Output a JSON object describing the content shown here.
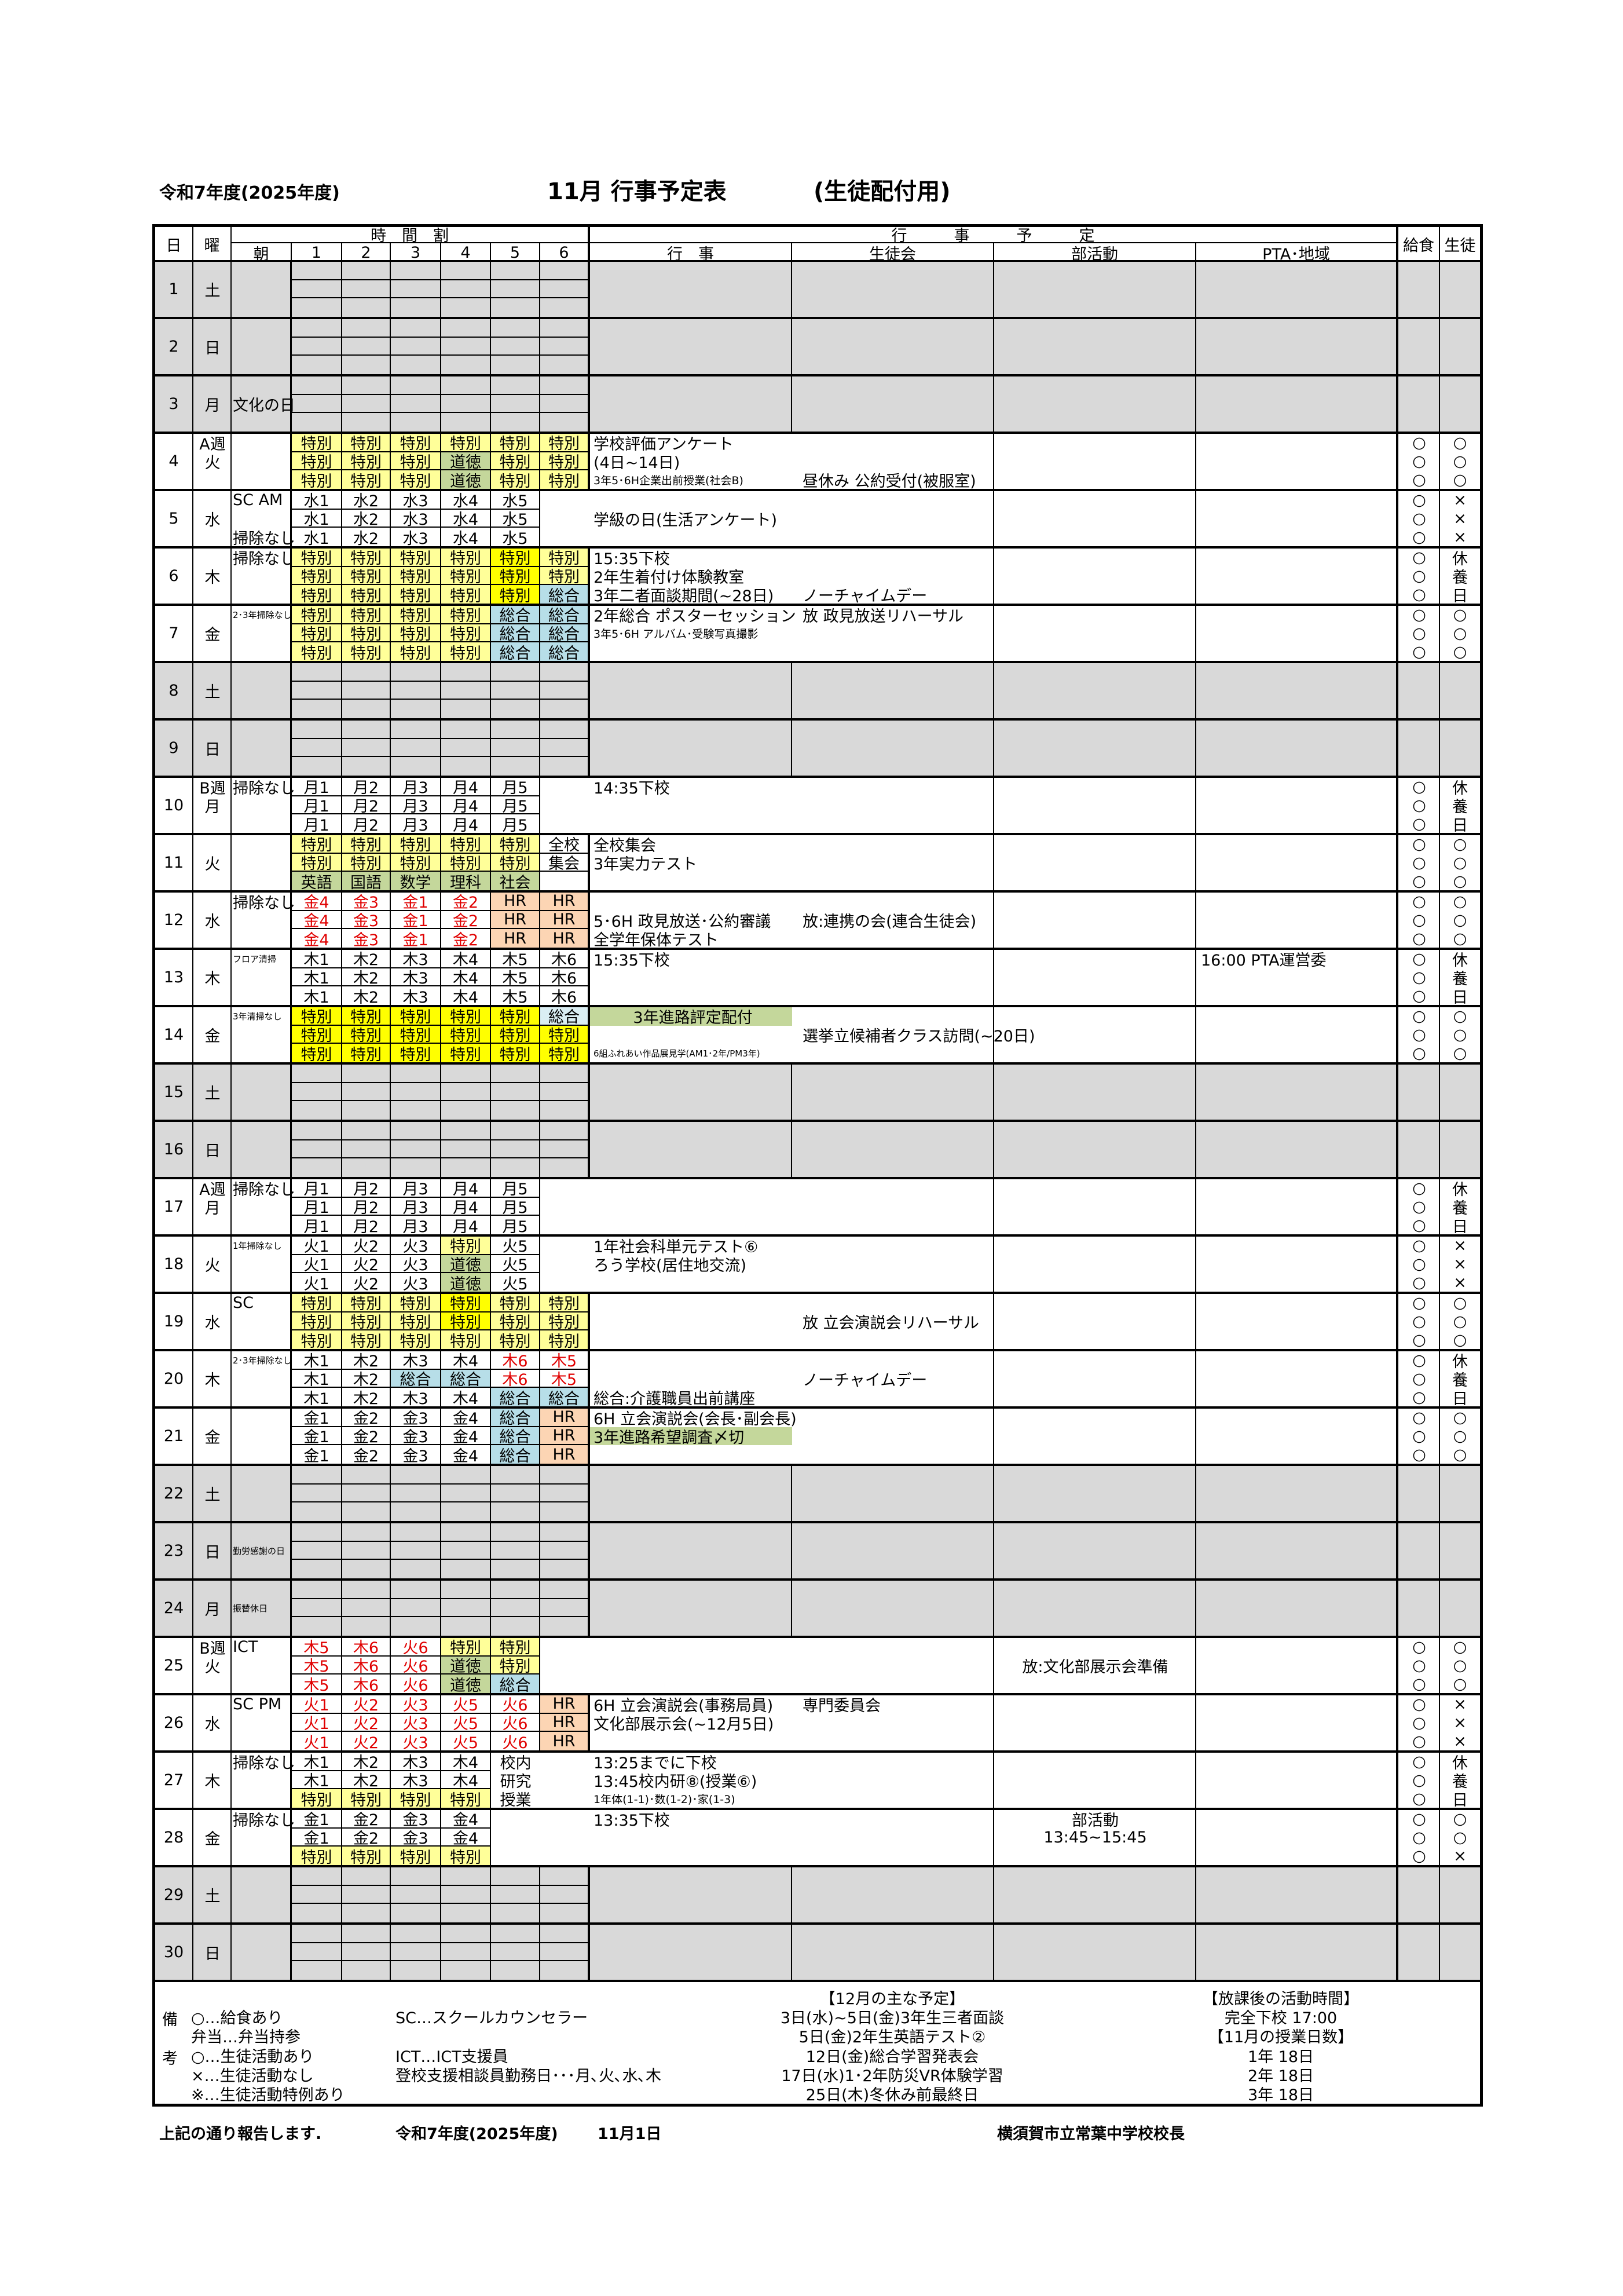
{
  "header": {
    "fiscal_year": "令和7年度(2025年度)",
    "title": "11月 行事予定表",
    "subtitle": "(生徒配付用)"
  },
  "columns": {
    "date": "日",
    "dow": "曜",
    "timetable": "時　間　割",
    "morning": "朝",
    "periods": [
      "1",
      "2",
      "3",
      "4",
      "5",
      "6"
    ],
    "schedule": "行　　　事　　　予　　　定",
    "events": "行　事",
    "council": "生徒会",
    "club": "部活動",
    "pta": "PTA･地域",
    "lunch": "給食",
    "students": "生徒"
  },
  "colors": {
    "y": "#ffff99",
    "Y": "#ffff00",
    "g": "#c4d79b",
    "b": "#b7dee8",
    "B": "#daeef3",
    "o": "#fcd5b4",
    "holiday": "#d9d9d9",
    "red_text": "#e00000",
    "highlight": "#c4d79b"
  },
  "days": [
    {
      "date": "1",
      "dow": "土",
      "holiday": true
    },
    {
      "date": "2",
      "dow": "日",
      "holiday": true
    },
    {
      "date": "3",
      "dow": "月",
      "holiday": true,
      "am": [
        "",
        "文化の日",
        ""
      ]
    },
    {
      "date": "4",
      "dow": "火",
      "week": "A週",
      "tt": [
        [
          "y:特別",
          "y:特別",
          "y:特別",
          "y:特別",
          "y:特別",
          "y:特別"
        ],
        [
          "y:特別",
          "y:特別",
          "y:特別",
          "g:道徳",
          "y:特別",
          "y:特別"
        ],
        [
          "y:特別",
          "y:特別",
          "y:特別",
          "g:道徳",
          "y:特別",
          "y:特別"
        ]
      ],
      "ev": [
        {
          "text": "学校評価アンケート"
        },
        {
          "text": "(4日~14日)"
        },
        {
          "text": "3年5･6H企業出前授業(社会B)",
          "small": true,
          "council": "昼休み 公約受付(被服室)"
        }
      ],
      "lunch": [
        "○",
        "○",
        "○"
      ],
      "students": [
        "○",
        "○",
        "○"
      ]
    },
    {
      "date": "5",
      "dow": "水",
      "am": [
        "SC AM",
        "",
        "掃除なし"
      ],
      "tt": [
        [
          "w:水1",
          "w:水2",
          "w:水3",
          "w:水4",
          "w:水5",
          "n:"
        ],
        [
          "w:水1",
          "w:水2",
          "w:水3",
          "w:水4",
          "w:水5",
          "n:"
        ],
        [
          "w:水1",
          "w:水2",
          "w:水3",
          "w:水4",
          "w:水5",
          "n:"
        ]
      ],
      "ev": [
        {
          "text": ""
        },
        {
          "text": "学級の日(生活アンケート)"
        },
        {
          "text": ""
        }
      ],
      "lunch": [
        "○",
        "○",
        "○"
      ],
      "students": [
        "×",
        "×",
        "×"
      ]
    },
    {
      "date": "6",
      "dow": "木",
      "am": [
        "掃除なし",
        "",
        ""
      ],
      "tt": [
        [
          "y:特別",
          "y:特別",
          "y:特別",
          "y:特別",
          "Y:特別",
          "y:特別"
        ],
        [
          "y:特別",
          "y:特別",
          "y:特別",
          "y:特別",
          "Y:特別",
          "y:特別"
        ],
        [
          "y:特別",
          "y:特別",
          "y:特別",
          "y:特別",
          "Y:特別",
          "b:総合"
        ]
      ],
      "ev": [
        {
          "text": "15:35下校"
        },
        {
          "text": "2年生着付け体験教室"
        },
        {
          "text": "3年二者面談期間(~28日)",
          "council": "ノーチャイムデー"
        }
      ],
      "lunch": [
        "○",
        "○",
        "○"
      ],
      "students": [
        "休",
        "養",
        "日"
      ]
    },
    {
      "date": "7",
      "dow": "金",
      "am": [
        "2･3年掃除なし",
        "",
        ""
      ],
      "am_small": true,
      "tt": [
        [
          "y:特別",
          "y:特別",
          "y:特別",
          "y:特別",
          "b:総合",
          "b:総合"
        ],
        [
          "y:特別",
          "y:特別",
          "y:特別",
          "y:特別",
          "b:総合",
          "b:総合"
        ],
        [
          "y:特別",
          "y:特別",
          "y:特別",
          "y:特別",
          "b:総合",
          "b:総合"
        ]
      ],
      "ev": [
        {
          "text": "2年総合 ポスターセッション",
          "council": "放 政見放送リハーサル"
        },
        {
          "text": "3年5･6H アルバム･受験写真撮影",
          "small": true
        },
        {
          "text": ""
        }
      ],
      "lunch": [
        "○",
        "○",
        "○"
      ],
      "students": [
        "○",
        "○",
        "○"
      ]
    },
    {
      "date": "8",
      "dow": "土",
      "holiday": true
    },
    {
      "date": "9",
      "dow": "日",
      "holiday": true
    },
    {
      "date": "10",
      "dow": "月",
      "week": "B週",
      "am": [
        "掃除なし",
        "",
        ""
      ],
      "tt": [
        [
          "w:月1",
          "w:月2",
          "w:月3",
          "w:月4",
          "w:月5",
          "n:"
        ],
        [
          "w:月1",
          "w:月2",
          "w:月3",
          "w:月4",
          "w:月5",
          "n:"
        ],
        [
          "w:月1",
          "w:月2",
          "w:月3",
          "w:月4",
          "w:月5",
          "n:"
        ]
      ],
      "ev": [
        {
          "text": "14:35下校"
        },
        {
          "text": ""
        },
        {
          "text": ""
        }
      ],
      "lunch": [
        "○",
        "○",
        "○"
      ],
      "students": [
        "休",
        "養",
        "日"
      ]
    },
    {
      "date": "11",
      "dow": "火",
      "tt": [
        [
          "y:特別",
          "y:特別",
          "y:特別",
          "y:特別",
          "y:特別",
          "w:全校"
        ],
        [
          "y:特別",
          "y:特別",
          "y:特別",
          "y:特別",
          "y:特別",
          "w:集会"
        ],
        [
          "g:英語",
          "g:国語",
          "g:数学",
          "g:理科",
          "g:社会",
          "w:"
        ]
      ],
      "ev": [
        {
          "text": "全校集会"
        },
        {
          "text": "3年実力テスト"
        },
        {
          "text": ""
        }
      ],
      "lunch": [
        "○",
        "○",
        "○"
      ],
      "students": [
        "○",
        "○",
        "○"
      ]
    },
    {
      "date": "12",
      "dow": "水",
      "am": [
        "掃除なし",
        "",
        ""
      ],
      "tt": [
        [
          "r:金4",
          "r:金3",
          "r:金1",
          "r:金2",
          "o:HR",
          "o:HR"
        ],
        [
          "r:金4",
          "r:金3",
          "r:金1",
          "r:金2",
          "o:HR",
          "o:HR"
        ],
        [
          "r:金4",
          "r:金3",
          "r:金1",
          "r:金2",
          "o:HR",
          "o:HR"
        ]
      ],
      "ev": [
        {
          "text": ""
        },
        {
          "text": "5･6H 政見放送･公約審議",
          "council": "放:連携の会(連合生徒会)"
        },
        {
          "text": "全学年保体テスト"
        }
      ],
      "lunch": [
        "○",
        "○",
        "○"
      ],
      "students": [
        "○",
        "○",
        "○"
      ]
    },
    {
      "date": "13",
      "dow": "木",
      "am": [
        "フロア清掃",
        "",
        ""
      ],
      "am_small": true,
      "tt": [
        [
          "w:木1",
          "w:木2",
          "w:木3",
          "w:木4",
          "w:木5",
          "w:木6"
        ],
        [
          "w:木1",
          "w:木2",
          "w:木3",
          "w:木4",
          "w:木5",
          "w:木6"
        ],
        [
          "w:木1",
          "w:木2",
          "w:木3",
          "w:木4",
          "w:木5",
          "w:木6"
        ]
      ],
      "ev": [
        {
          "text": "15:35下校"
        },
        {
          "text": ""
        },
        {
          "text": ""
        }
      ],
      "pta": [
        "16:00 PTA運営委",
        "",
        ""
      ],
      "lunch": [
        "○",
        "○",
        "○"
      ],
      "students": [
        "休",
        "養",
        "日"
      ]
    },
    {
      "date": "14",
      "dow": "金",
      "am": [
        "3年清掃なし",
        "",
        ""
      ],
      "am_small": true,
      "tt": [
        [
          "Y:特別",
          "Y:特別",
          "Y:特別",
          "Y:特別",
          "Y:特別",
          "B:総合"
        ],
        [
          "Y:特別",
          "Y:特別",
          "Y:特別",
          "Y:特別",
          "Y:特別",
          "Y:特別"
        ],
        [
          "Y:特別",
          "Y:特別",
          "Y:特別",
          "Y:特別",
          "Y:特別",
          "Y:特別"
        ]
      ],
      "ev": [
        {
          "text": "3年進路評定配付",
          "highlight": true,
          "center": true
        },
        {
          "text": "",
          "council": "選挙立候補者クラス訪問(~20日)"
        },
        {
          "text": "6組ふれあい作品展見学(AM1･2年/PM3年)",
          "tiny": true
        }
      ],
      "lunch": [
        "○",
        "○",
        "○"
      ],
      "students": [
        "○",
        "○",
        "○"
      ]
    },
    {
      "date": "15",
      "dow": "土",
      "holiday": true
    },
    {
      "date": "16",
      "dow": "日",
      "holiday": true
    },
    {
      "date": "17",
      "dow": "月",
      "week": "A週",
      "am": [
        "掃除なし",
        "",
        ""
      ],
      "tt": [
        [
          "w:月1",
          "w:月2",
          "w:月3",
          "w:月4",
          "w:月5",
          "n:"
        ],
        [
          "w:月1",
          "w:月2",
          "w:月3",
          "w:月4",
          "w:月5",
          "n:"
        ],
        [
          "w:月1",
          "w:月2",
          "w:月3",
          "w:月4",
          "w:月5",
          "n:"
        ]
      ],
      "ev": [
        {
          "text": ""
        },
        {
          "text": ""
        },
        {
          "text": ""
        }
      ],
      "lunch": [
        "○",
        "○",
        "○"
      ],
      "students": [
        "休",
        "養",
        "日"
      ]
    },
    {
      "date": "18",
      "dow": "火",
      "am": [
        "1年掃除なし",
        "",
        ""
      ],
      "am_small": true,
      "tt": [
        [
          "w:火1",
          "w:火2",
          "w:火3",
          "y:特別",
          "w:火5",
          "n:"
        ],
        [
          "w:火1",
          "w:火2",
          "w:火3",
          "g:道徳",
          "w:火5",
          "n:"
        ],
        [
          "w:火1",
          "w:火2",
          "w:火3",
          "g:道徳",
          "w:火5",
          "n:"
        ]
      ],
      "ev": [
        {
          "text": "1年社会科単元テスト⑥"
        },
        {
          "text": "ろう学校(居住地交流)"
        },
        {
          "text": ""
        }
      ],
      "lunch": [
        "○",
        "○",
        "○"
      ],
      "students": [
        "×",
        "×",
        "×"
      ]
    },
    {
      "date": "19",
      "dow": "水",
      "am": [
        "SC",
        "",
        ""
      ],
      "tt": [
        [
          "y:特別",
          "y:特別",
          "y:特別",
          "Y:特別",
          "y:特別",
          "y:特別"
        ],
        [
          "y:特別",
          "y:特別",
          "y:特別",
          "Y:特別",
          "y:特別",
          "y:特別"
        ],
        [
          "y:特別",
          "y:特別",
          "y:特別",
          "y:特別",
          "y:特別",
          "y:特別"
        ]
      ],
      "ev": [
        {
          "text": ""
        },
        {
          "text": "",
          "council": "放 立会演説会リハーサル"
        },
        {
          "text": ""
        }
      ],
      "lunch": [
        "○",
        "○",
        "○"
      ],
      "students": [
        "○",
        "○",
        "○"
      ]
    },
    {
      "date": "20",
      "dow": "木",
      "am": [
        "2･3年掃除なし",
        "",
        ""
      ],
      "am_small": true,
      "tt": [
        [
          "w:木1",
          "w:木2",
          "w:木3",
          "w:木4",
          "r:木6",
          "r:木5"
        ],
        [
          "w:木1",
          "w:木2",
          "b:総合",
          "b:総合",
          "r:木6",
          "r:木5"
        ],
        [
          "w:木1",
          "w:木2",
          "w:木3",
          "w:木4",
          "b:総合",
          "b:総合"
        ]
      ],
      "ev": [
        {
          "text": ""
        },
        {
          "text": "",
          "council": "ノーチャイムデー"
        },
        {
          "text": "総合:介護職員出前講座"
        }
      ],
      "lunch": [
        "○",
        "○",
        "○"
      ],
      "students": [
        "休",
        "養",
        "日"
      ]
    },
    {
      "date": "21",
      "dow": "金",
      "tt": [
        [
          "w:金1",
          "w:金2",
          "w:金3",
          "w:金4",
          "b:総合",
          "o:HR"
        ],
        [
          "w:金1",
          "w:金2",
          "w:金3",
          "w:金4",
          "b:総合",
          "o:HR"
        ],
        [
          "w:金1",
          "w:金2",
          "w:金3",
          "w:金4",
          "b:総合",
          "o:HR"
        ]
      ],
      "ev": [
        {
          "text": "6H 立会演説会(会長･副会長)"
        },
        {
          "text": "3年進路希望調査〆切",
          "highlight": true
        },
        {
          "text": ""
        }
      ],
      "lunch": [
        "○",
        "○",
        "○"
      ],
      "students": [
        "○",
        "○",
        "○"
      ]
    },
    {
      "date": "22",
      "dow": "土",
      "holiday": true
    },
    {
      "date": "23",
      "dow": "日",
      "holiday": true,
      "am": [
        "",
        "勤労感謝の日",
        ""
      ],
      "am_small": true
    },
    {
      "date": "24",
      "dow": "月",
      "holiday": true,
      "am": [
        "",
        "振替休日",
        ""
      ],
      "am_small": true
    },
    {
      "date": "25",
      "dow": "火",
      "week": "B週",
      "am": [
        "ICT",
        "",
        ""
      ],
      "tt": [
        [
          "r:木5",
          "r:木6",
          "r:火6",
          "y:特別",
          "y:特別",
          "n:"
        ],
        [
          "r:木5",
          "r:木6",
          "r:火6",
          "g:道徳",
          "y:特別",
          "n:"
        ],
        [
          "r:木5",
          "r:木6",
          "r:火6",
          "g:道徳",
          "b:総合",
          "n:"
        ]
      ],
      "ev": [
        {
          "text": ""
        },
        {
          "text": ""
        },
        {
          "text": ""
        }
      ],
      "club": [
        "",
        "放:文化部展示会準備",
        ""
      ],
      "lunch": [
        "○",
        "○",
        "○"
      ],
      "students": [
        "○",
        "○",
        "○"
      ]
    },
    {
      "date": "26",
      "dow": "水",
      "am": [
        "SC PM",
        "",
        ""
      ],
      "tt": [
        [
          "r:火1",
          "r:火2",
          "r:火3",
          "r:火5",
          "r:火6",
          "o:HR"
        ],
        [
          "r:火1",
          "r:火2",
          "r:火3",
          "r:火5",
          "r:火6",
          "o:HR"
        ],
        [
          "r:火1",
          "r:火2",
          "r:火3",
          "r:火5",
          "r:火6",
          "o:HR"
        ]
      ],
      "ev": [
        {
          "text": "6H 立会演説会(事務局員)",
          "council": "専門委員会"
        },
        {
          "text": "文化部展示会(~12月5日)"
        },
        {
          "text": ""
        }
      ],
      "lunch": [
        "○",
        "○",
        "○"
      ],
      "students": [
        "×",
        "×",
        "×"
      ]
    },
    {
      "date": "27",
      "dow": "木",
      "am": [
        "掃除なし",
        "",
        ""
      ],
      "tt": [
        [
          "w:木1",
          "w:木2",
          "w:木3",
          "w:木4",
          "t:校内",
          "n:"
        ],
        [
          "w:木1",
          "w:木2",
          "w:木3",
          "w:木4",
          "t:研究",
          "n:"
        ],
        [
          "y:特別",
          "y:特別",
          "y:特別",
          "y:特別",
          "t:授業",
          "n:"
        ]
      ],
      "ev": [
        {
          "text": "13:25までに下校"
        },
        {
          "text": "13:45校内研⑧(授業⑥)"
        },
        {
          "text": "1年体(1-1)･数(1-2)･家(1-3)",
          "small": true
        }
      ],
      "lunch": [
        "○",
        "○",
        "○"
      ],
      "students": [
        "休",
        "養",
        "日"
      ]
    },
    {
      "date": "28",
      "dow": "金",
      "am": [
        "掃除なし",
        "",
        ""
      ],
      "tt": [
        [
          "w:金1",
          "w:金2",
          "w:金3",
          "w:金4",
          "n:",
          "n:"
        ],
        [
          "w:金1",
          "w:金2",
          "w:金3",
          "w:金4",
          "n:",
          "n:"
        ],
        [
          "y:特別",
          "y:特別",
          "y:特別",
          "y:特別",
          "n:",
          "n:"
        ]
      ],
      "ev": [
        {
          "text": "13:35下校"
        },
        {
          "text": ""
        },
        {
          "text": ""
        }
      ],
      "club": [
        "部活動",
        "13:45~15:45",
        ""
      ],
      "lunch": [
        "○",
        "○",
        "○"
      ],
      "students": [
        "○",
        "○",
        "×"
      ]
    },
    {
      "date": "29",
      "dow": "土",
      "holiday": true
    },
    {
      "date": "30",
      "dow": "日",
      "holiday": true
    }
  ],
  "notes": {
    "label_top": "備",
    "label_bottom": "考",
    "legend": [
      "○…給食あり",
      "弁当…弁当持参",
      "○…生徒活動あり",
      "×…生徒活動なし",
      "※…生徒活動特例あり"
    ],
    "staff": [
      "SC…スクールカウンセラー",
      "",
      "ICT…ICT支援員",
      "登校支援相談員勤務日･･･月､火､水､木",
      ""
    ],
    "december": [
      "【12月の主な予定】",
      "3日(水)~5日(金)3年生三者面談",
      "5日(金)2年生英語テスト②",
      "12日(金)総合学習発表会",
      "17日(水)1･2年防災VR体験学習",
      "25日(木)冬休み前最終日"
    ],
    "after_school": [
      "【放課後の活動時間】",
      "完全下校 17:00",
      "【11月の授業日数】",
      "1年 18日",
      "2年 18日",
      "3年 18日"
    ]
  },
  "footer": {
    "report": "上記の通り報告します.",
    "fiscal_year": "令和7年度(2025年度)",
    "date": "11月1日",
    "signature": "横須賀市立常葉中学校校長"
  }
}
